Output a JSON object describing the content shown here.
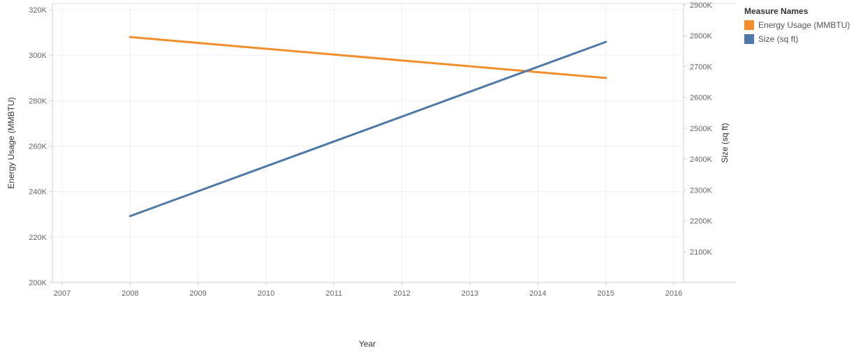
{
  "legend": {
    "title": "Measure Names",
    "items": [
      {
        "label": "Energy Usage (MMBTU)",
        "color": "#f28e2b"
      },
      {
        "label": "Size (sq ft)",
        "color": "#4e79a7"
      }
    ]
  },
  "chart_data": {
    "type": "line",
    "xlabel": "Year",
    "ylabel_left": "Energy Usage (MMBTU)",
    "ylabel_right": "Size (sq ft)",
    "x_ticks": [
      "2007",
      "2008",
      "2009",
      "2010",
      "2011",
      "2012",
      "2013",
      "2014",
      "2015",
      "2016"
    ],
    "xlim": [
      2007,
      2016
    ],
    "y_left": {
      "min": 200000,
      "max": 320000,
      "ticks": [
        "200K",
        "220K",
        "240K",
        "260K",
        "280K",
        "300K",
        "320K"
      ],
      "tick_values": [
        200000,
        220000,
        240000,
        260000,
        280000,
        300000,
        320000
      ]
    },
    "y_right": {
      "min": 2000000,
      "max": 2900000,
      "ticks": [
        "2100K",
        "2200K",
        "2300K",
        "2400K",
        "2500K",
        "2600K",
        "2700K",
        "2800K",
        "2900K"
      ],
      "tick_values": [
        2100000,
        2200000,
        2300000,
        2400000,
        2500000,
        2600000,
        2700000,
        2800000,
        2900000
      ]
    },
    "grid": true,
    "legend_position": "top-right",
    "series": [
      {
        "name": "Energy Usage (MMBTU)",
        "axis": "left",
        "color": "#f28e2b",
        "x": [
          2008,
          2015
        ],
        "y": [
          308000,
          290000
        ]
      },
      {
        "name": "Size (sq ft)",
        "axis": "right",
        "color": "#4e79a7",
        "x": [
          2008,
          2015
        ],
        "y": [
          2215000,
          2780000
        ]
      }
    ]
  }
}
